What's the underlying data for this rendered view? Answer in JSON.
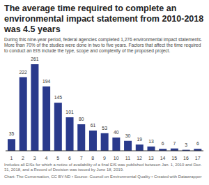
{
  "chart_data": {
    "type": "bar",
    "title": "The average time required to complete an environmental impact statement from 2010-2018 was 4.5 years",
    "subtitle": "During this nine-year period, federal agencies completed 1,276 environmental impact statements. More than 70% of the studies were done in two to five years. Factors that affect the time required to conduct an EIS include the type, scope and complexity of the proposed project.",
    "categories": [
      "1",
      "2",
      "3",
      "4",
      "5",
      "6",
      "7",
      "8",
      "9",
      "10",
      "11",
      "12",
      "13",
      "14",
      "15",
      "16",
      "17"
    ],
    "values": [
      35,
      222,
      261,
      194,
      145,
      101,
      80,
      61,
      53,
      40,
      30,
      19,
      13,
      6,
      7,
      3,
      6
    ],
    "color": "#2a3a8c",
    "ylim": [
      0,
      261
    ],
    "data_labels": true,
    "tick_labels": "x",
    "annotations": [
      "Includes all EISs for which a notice of availability of a final EIS was published between Jan. 1, 2010 and Dec. 31, 2018, and a Record of Decision was issued by June 18, 2019.",
      "Chart: The Conversation, CC BY-ND • Source: Council on Environmental Quality • Created with Datawrapper"
    ]
  }
}
